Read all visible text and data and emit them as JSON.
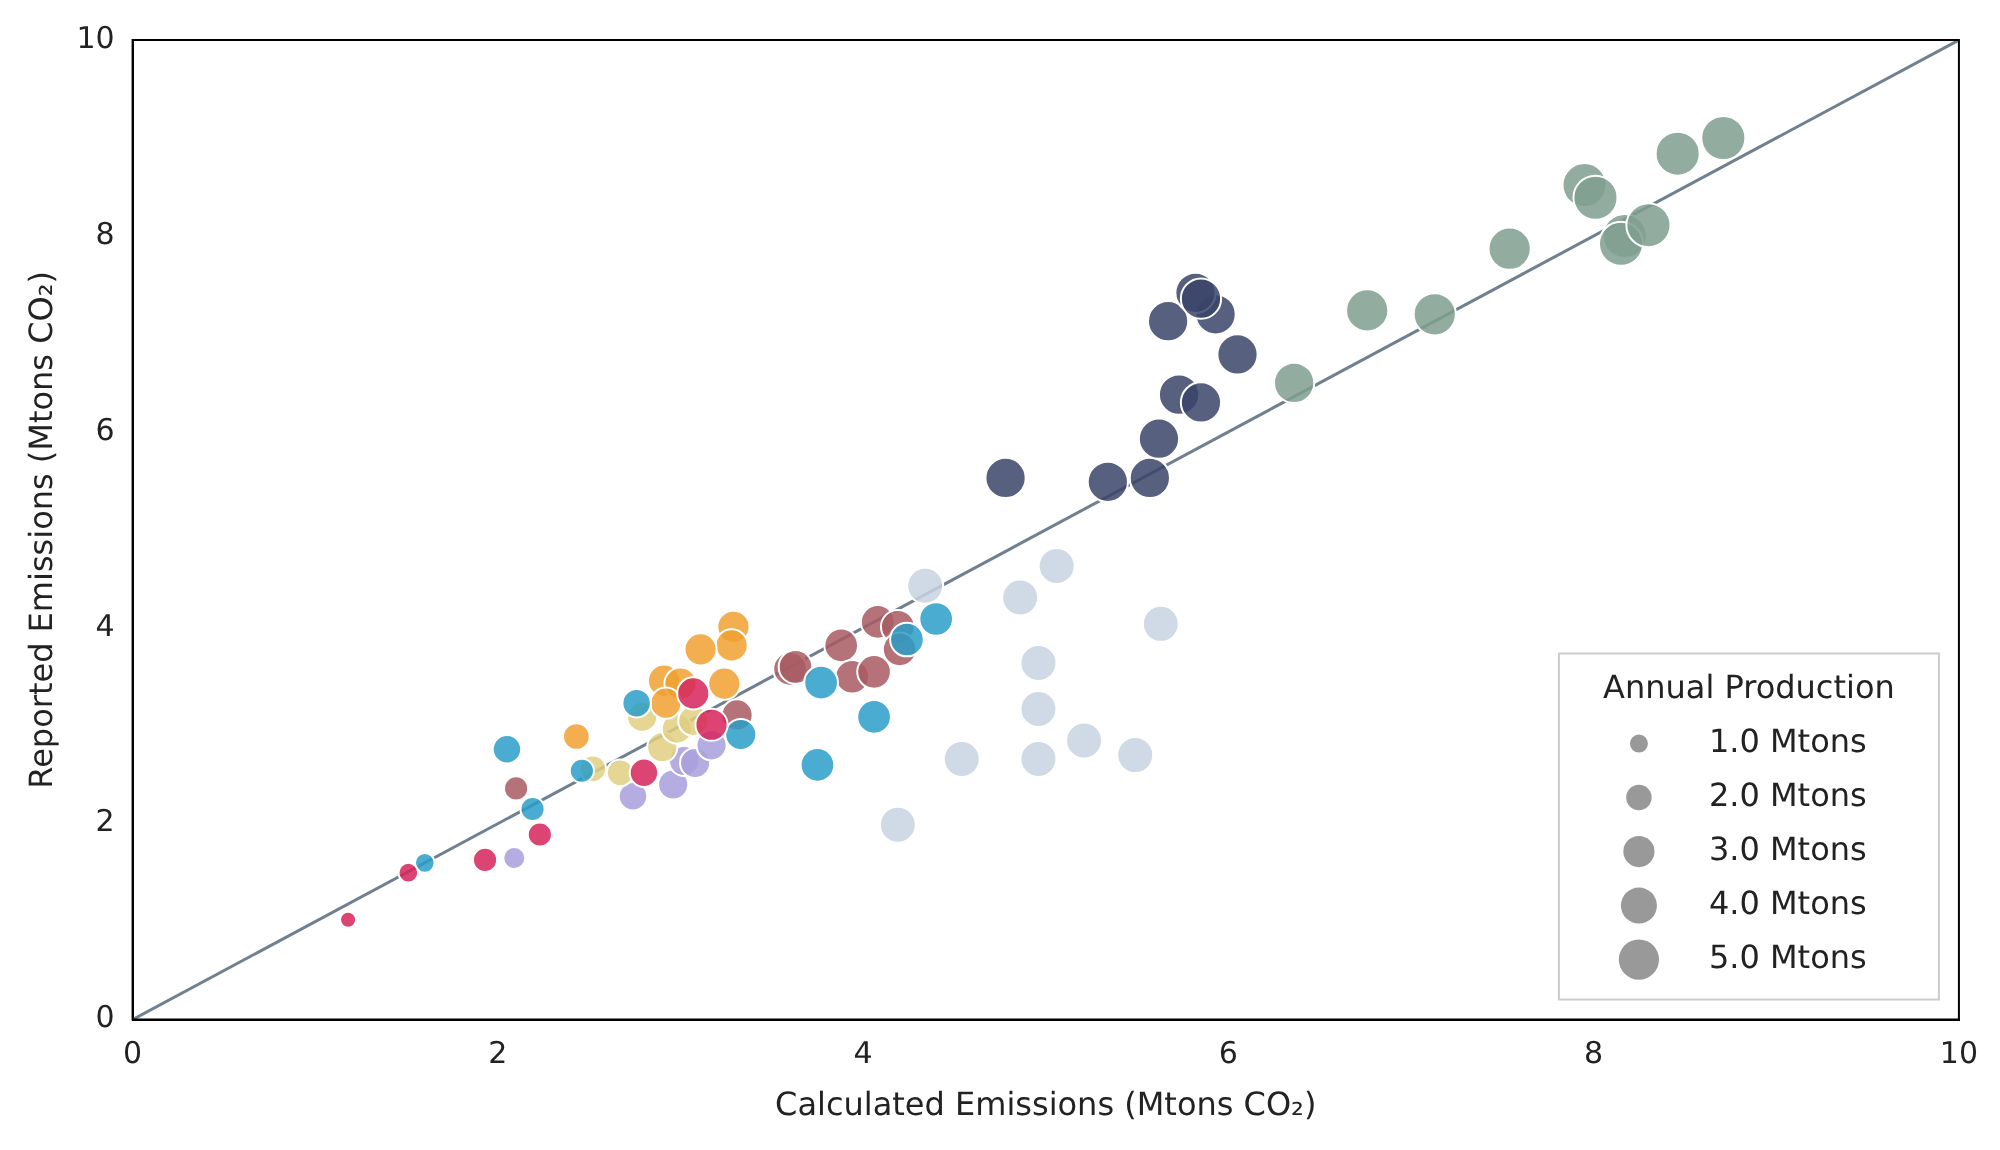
{
  "chart_data": {
    "type": "bubble",
    "xlabel": "Calculated Emissions (Mtons CO₂)",
    "ylabel": "Reported Emissions (Mtons CO₂)",
    "legend_title": "Annual Production",
    "size_legend": [
      {
        "value": 1,
        "label": "1.0 Mtons"
      },
      {
        "value": 2,
        "label": "2.0 Mtons"
      },
      {
        "value": 3,
        "label": "3.0 Mtons"
      },
      {
        "value": 4,
        "label": "4.0 Mtons"
      },
      {
        "value": 5,
        "label": "5.0 Mtons"
      }
    ],
    "xlim": [
      0,
      10
    ],
    "ylim": [
      0,
      10
    ],
    "xticks": [
      0,
      2,
      4,
      6,
      8,
      10
    ],
    "yticks": [
      0,
      2,
      4,
      6,
      8,
      10
    ],
    "grid": false,
    "series": [
      {
        "type": "line",
        "color": "#708090",
        "x": [
          0,
          10
        ],
        "values": [
          0,
          10
        ],
        "marker": "none"
      },
      {
        "color": "#d6245a",
        "x": [
          1.18,
          1.51,
          1.93,
          2.23,
          2.8,
          3.17,
          3.07
        ],
        "values": [
          1.02,
          1.5,
          1.63,
          1.89,
          2.52,
          3.01,
          3.33
        ],
        "sizes": [
          0.8,
          1.2,
          1.8,
          1.8,
          2.5,
          3.2,
          3.2
        ]
      },
      {
        "color": "#2a9dc8",
        "x": [
          1.6,
          2.05,
          2.19,
          2.76,
          2.46,
          3.33,
          3.77,
          3.75,
          4.06,
          4.24,
          4.4
        ],
        "values": [
          1.6,
          2.76,
          2.15,
          3.23,
          2.54,
          2.91,
          3.44,
          2.6,
          3.09,
          3.88,
          4.09
        ],
        "sizes": [
          1.2,
          2.5,
          1.8,
          2.5,
          1.8,
          3,
          3.5,
          3.5,
          3.5,
          3.5,
          3.5
        ]
      },
      {
        "color": "#a85a62",
        "x": [
          2.1,
          3.31,
          3.6,
          3.63,
          3.88,
          3.94,
          4.06,
          4.08,
          4.19,
          4.2
        ],
        "values": [
          2.36,
          3.11,
          3.58,
          3.6,
          3.82,
          3.5,
          3.55,
          4.06,
          4.01,
          3.78
        ],
        "sizes": [
          1.8,
          3,
          3.5,
          3.5,
          3.5,
          3.5,
          3.5,
          3.5,
          3.5,
          3.5
        ]
      },
      {
        "color": "#f0a030",
        "x": [
          2.43,
          3.29,
          3.28,
          3.11,
          3.24,
          2.91,
          3,
          2.92
        ],
        "values": [
          2.89,
          4.01,
          3.82,
          3.78,
          3.43,
          3.46,
          3.43,
          3.23
        ],
        "sizes": [
          2.2,
          3.2,
          3.2,
          3.2,
          3.2,
          3.2,
          3.2,
          3
        ]
      },
      {
        "color": "#e0cf80",
        "x": [
          2.52,
          2.67,
          2.79,
          2.9,
          2.98,
          3.07
        ],
        "values": [
          2.56,
          2.52,
          3.09,
          2.78,
          2.97,
          3.05
        ],
        "sizes": [
          2.2,
          2.2,
          2.8,
          2.8,
          2.8,
          2.8
        ]
      },
      {
        "color": "#a89fdc",
        "x": [
          2.09,
          2.74,
          2.96,
          3.02,
          3.08,
          3.17
        ],
        "values": [
          1.65,
          2.28,
          2.4,
          2.64,
          2.62,
          2.8
        ],
        "sizes": [
          1.5,
          2.5,
          2.8,
          2.8,
          2.8,
          2.8
        ]
      },
      {
        "color": "#c8d4e2",
        "x": [
          4.34,
          5.06,
          4.86,
          5.63,
          4.96,
          4.96,
          4.54,
          4.96,
          5.21,
          5.49,
          4.19
        ],
        "values": [
          4.43,
          4.63,
          4.31,
          4.04,
          3.64,
          3.17,
          2.66,
          2.66,
          2.85,
          2.7,
          1.99
        ],
        "sizes": [
          4,
          4,
          4,
          4,
          4,
          4,
          4,
          4,
          4,
          4,
          4
        ]
      },
      {
        "color": "#3a4468",
        "x": [
          4.78,
          5.34,
          5.57,
          5.62,
          5.73,
          5.85,
          6.05,
          5.67,
          5.93,
          5.82,
          5.85
        ],
        "values": [
          5.53,
          5.49,
          5.53,
          5.93,
          6.38,
          6.3,
          6.79,
          7.13,
          7.2,
          7.42,
          7.36
        ],
        "sizes": [
          5,
          5,
          5,
          5,
          5,
          5,
          5,
          5,
          5,
          5,
          5
        ]
      },
      {
        "color": "#7f9f8f",
        "x": [
          6.36,
          6.76,
          7.13,
          7.54,
          7.95,
          8.01,
          8.17,
          8.15,
          8.3,
          8.46,
          8.71
        ],
        "values": [
          6.5,
          7.24,
          7.2,
          7.87,
          8.52,
          8.39,
          8,
          7.92,
          8.11,
          8.84,
          9
        ],
        "sizes": [
          5,
          5.5,
          5.5,
          5.5,
          6,
          6,
          6,
          6,
          6,
          6,
          6
        ]
      }
    ]
  }
}
